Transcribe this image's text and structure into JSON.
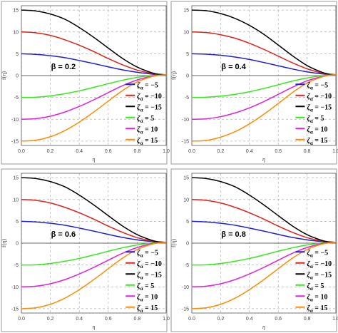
{
  "colors": {
    "panel_border": "#9a9a9a",
    "grid": "#b0b0b0",
    "axis": "#555555",
    "tick_text": "#444444",
    "series": [
      "#1f1fd6",
      "#e0201b",
      "#000000",
      "#34e81a",
      "#e11fe0",
      "#ff8c00"
    ]
  },
  "chart_data": [
    {
      "type": "line",
      "annotation": "β = 0.2",
      "xlabel": "η",
      "ylabel": "f(η)",
      "xlim": [
        0,
        1
      ],
      "ylim": [
        -16,
        16
      ],
      "xticks": [
        "0.0",
        "0.2",
        "0.4",
        "0.6",
        "0.8",
        "1.0"
      ],
      "yticks": [
        "-15",
        "-10",
        "-5",
        "0",
        "5",
        "10",
        "15"
      ],
      "grid": true,
      "legend": "right",
      "series": [
        {
          "name": "ζα = −5",
          "x": [
            0,
            0.1,
            0.2,
            0.3,
            0.4,
            0.5,
            0.6,
            0.7,
            0.8,
            0.9,
            0.95,
            1.0
          ],
          "y": [
            5,
            4.85,
            4.55,
            4.1,
            3.45,
            2.75,
            2.0,
            1.3,
            0.75,
            0.35,
            0.2,
            0.2
          ]
        },
        {
          "name": "ζα = −10",
          "x": [
            0,
            0.1,
            0.2,
            0.3,
            0.4,
            0.5,
            0.6,
            0.7,
            0.8,
            0.9,
            0.95,
            1.0
          ],
          "y": [
            10,
            9.8,
            9.2,
            8.2,
            6.95,
            5.5,
            3.9,
            2.45,
            1.25,
            0.5,
            0.25,
            0.2
          ]
        },
        {
          "name": "ζα = −15",
          "x": [
            0,
            0.1,
            0.2,
            0.3,
            0.4,
            0.5,
            0.6,
            0.7,
            0.8,
            0.9,
            0.95,
            1.0
          ],
          "y": [
            15,
            14.8,
            14.1,
            12.9,
            11.0,
            8.75,
            6.3,
            3.9,
            1.95,
            0.65,
            0.3,
            0.2
          ]
        },
        {
          "name": "ζα = 5",
          "x": [
            0,
            0.1,
            0.2,
            0.3,
            0.4,
            0.5,
            0.6,
            0.7,
            0.8,
            0.9,
            0.95,
            1.0
          ],
          "y": [
            -5,
            -4.95,
            -4.65,
            -4.15,
            -3.5,
            -2.7,
            -1.85,
            -1.05,
            -0.4,
            0.0,
            0.1,
            0.2
          ]
        },
        {
          "name": "ζα = 10",
          "x": [
            0,
            0.1,
            0.2,
            0.3,
            0.4,
            0.5,
            0.6,
            0.7,
            0.8,
            0.9,
            0.95,
            1.0
          ],
          "y": [
            -10,
            -9.85,
            -9.3,
            -8.35,
            -7.05,
            -5.55,
            -3.9,
            -2.3,
            -1.0,
            -0.15,
            0.05,
            0.2
          ]
        },
        {
          "name": "ζα = 15",
          "x": [
            0,
            0.1,
            0.2,
            0.3,
            0.4,
            0.5,
            0.6,
            0.7,
            0.8,
            0.9,
            0.95,
            1.0
          ],
          "y": [
            -15,
            -14.8,
            -14.0,
            -12.6,
            -10.65,
            -8.35,
            -5.85,
            -3.4,
            -1.45,
            -0.25,
            0.05,
            0.2
          ]
        }
      ]
    },
    {
      "type": "line",
      "annotation": "β = 0.4",
      "xlabel": "η",
      "ylabel": "f(η)",
      "xlim": [
        0,
        1
      ],
      "ylim": [
        -16,
        16
      ],
      "xticks": [
        "0.0",
        "0.2",
        "0.4",
        "0.6",
        "0.8",
        "1.0"
      ],
      "yticks": [
        "-15",
        "-10",
        "-5",
        "0",
        "5",
        "10",
        "15"
      ],
      "grid": true,
      "legend": "right",
      "series": [
        {
          "name": "ζα = −5",
          "x": [
            0,
            0.1,
            0.2,
            0.3,
            0.4,
            0.5,
            0.6,
            0.7,
            0.8,
            0.9,
            0.95,
            1.0
          ],
          "y": [
            5,
            4.9,
            4.65,
            4.25,
            3.7,
            3.0,
            2.25,
            1.5,
            0.85,
            0.4,
            0.25,
            0.2
          ]
        },
        {
          "name": "ζα = −10",
          "x": [
            0,
            0.1,
            0.2,
            0.3,
            0.4,
            0.5,
            0.6,
            0.7,
            0.8,
            0.9,
            0.95,
            1.0
          ],
          "y": [
            10,
            9.85,
            9.35,
            8.55,
            7.4,
            6.0,
            4.45,
            2.9,
            1.55,
            0.6,
            0.3,
            0.2
          ]
        },
        {
          "name": "ζα = −15",
          "x": [
            0,
            0.1,
            0.2,
            0.3,
            0.4,
            0.5,
            0.6,
            0.7,
            0.8,
            0.9,
            0.95,
            1.0
          ],
          "y": [
            15,
            14.85,
            14.2,
            13.1,
            11.5,
            9.45,
            7.0,
            4.5,
            2.3,
            0.8,
            0.35,
            0.2
          ]
        },
        {
          "name": "ζα = 5",
          "x": [
            0,
            0.1,
            0.2,
            0.3,
            0.4,
            0.5,
            0.6,
            0.7,
            0.8,
            0.9,
            0.95,
            1.0
          ],
          "y": [
            -5,
            -4.95,
            -4.7,
            -4.3,
            -3.7,
            -2.95,
            -2.1,
            -1.25,
            -0.55,
            -0.05,
            0.1,
            0.2
          ]
        },
        {
          "name": "ζα = 10",
          "x": [
            0,
            0.1,
            0.2,
            0.3,
            0.4,
            0.5,
            0.6,
            0.7,
            0.8,
            0.9,
            0.95,
            1.0
          ],
          "y": [
            -10,
            -9.9,
            -9.4,
            -8.55,
            -7.4,
            -5.95,
            -4.3,
            -2.65,
            -1.2,
            -0.25,
            0.05,
            0.2
          ]
        },
        {
          "name": "ζα = 15",
          "x": [
            0,
            0.1,
            0.2,
            0.3,
            0.4,
            0.5,
            0.6,
            0.7,
            0.8,
            0.9,
            0.95,
            1.0
          ],
          "y": [
            -15,
            -14.85,
            -14.1,
            -12.85,
            -11.05,
            -8.85,
            -6.4,
            -3.85,
            -1.7,
            -0.35,
            0.05,
            0.2
          ]
        }
      ]
    },
    {
      "type": "line",
      "annotation": "β = 0.6",
      "xlabel": "η",
      "ylabel": "f(η)",
      "xlim": [
        0,
        1
      ],
      "ylim": [
        -16,
        16
      ],
      "xticks": [
        "0.0",
        "0.2",
        "0.4",
        "0.6",
        "0.8",
        "1.0"
      ],
      "yticks": [
        "-15",
        "-10",
        "-5",
        "0",
        "5",
        "10",
        "15"
      ],
      "grid": true,
      "legend": "right",
      "series": [
        {
          "name": "ζα = −5",
          "x": [
            0,
            0.1,
            0.2,
            0.3,
            0.4,
            0.5,
            0.6,
            0.7,
            0.8,
            0.9,
            0.95,
            1.0
          ],
          "y": [
            5,
            4.85,
            4.55,
            4.1,
            3.45,
            2.75,
            2.0,
            1.3,
            0.75,
            0.35,
            0.2,
            0.2
          ]
        },
        {
          "name": "ζα = −10",
          "x": [
            0,
            0.1,
            0.2,
            0.3,
            0.4,
            0.5,
            0.6,
            0.7,
            0.8,
            0.9,
            0.95,
            1.0
          ],
          "y": [
            10,
            9.8,
            9.2,
            8.2,
            6.95,
            5.5,
            3.9,
            2.45,
            1.25,
            0.5,
            0.25,
            0.2
          ]
        },
        {
          "name": "ζα = −15",
          "x": [
            0,
            0.1,
            0.2,
            0.3,
            0.4,
            0.5,
            0.6,
            0.7,
            0.8,
            0.9,
            0.95,
            1.0
          ],
          "y": [
            15,
            14.8,
            14.1,
            12.9,
            11.0,
            8.75,
            6.3,
            3.9,
            1.95,
            0.65,
            0.3,
            0.2
          ]
        },
        {
          "name": "ζα = 5",
          "x": [
            0,
            0.1,
            0.2,
            0.3,
            0.4,
            0.5,
            0.6,
            0.7,
            0.8,
            0.9,
            0.95,
            1.0
          ],
          "y": [
            -5,
            -4.95,
            -4.65,
            -4.15,
            -3.5,
            -2.7,
            -1.85,
            -1.05,
            -0.4,
            0.0,
            0.1,
            0.2
          ]
        },
        {
          "name": "ζα = 10",
          "x": [
            0,
            0.1,
            0.2,
            0.3,
            0.4,
            0.5,
            0.6,
            0.7,
            0.8,
            0.9,
            0.95,
            1.0
          ],
          "y": [
            -10,
            -9.85,
            -9.3,
            -8.35,
            -7.05,
            -5.55,
            -3.9,
            -2.3,
            -1.0,
            -0.15,
            0.05,
            0.2
          ]
        },
        {
          "name": "ζα = 15",
          "x": [
            0,
            0.1,
            0.2,
            0.3,
            0.4,
            0.5,
            0.6,
            0.7,
            0.8,
            0.9,
            0.95,
            1.0
          ],
          "y": [
            -15,
            -14.8,
            -14.0,
            -12.6,
            -10.65,
            -8.35,
            -5.85,
            -3.4,
            -1.45,
            -0.25,
            0.05,
            0.2
          ]
        }
      ]
    },
    {
      "type": "line",
      "annotation": "β = 0.8",
      "xlabel": "η",
      "ylabel": "f(η)",
      "xlim": [
        0,
        1
      ],
      "ylim": [
        -16,
        16
      ],
      "xticks": [
        "0.0",
        "0.2",
        "0.4",
        "0.6",
        "0.8",
        "1.0"
      ],
      "yticks": [
        "-15",
        "-10",
        "-5",
        "0",
        "5",
        "10",
        "15"
      ],
      "grid": true,
      "legend": "right",
      "series": [
        {
          "name": "ζα = −5",
          "x": [
            0,
            0.1,
            0.2,
            0.3,
            0.4,
            0.5,
            0.6,
            0.7,
            0.8,
            0.9,
            0.95,
            1.0
          ],
          "y": [
            5,
            4.85,
            4.55,
            4.1,
            3.45,
            2.75,
            2.0,
            1.3,
            0.75,
            0.35,
            0.2,
            0.2
          ]
        },
        {
          "name": "ζα = −10",
          "x": [
            0,
            0.1,
            0.2,
            0.3,
            0.4,
            0.5,
            0.6,
            0.7,
            0.8,
            0.9,
            0.95,
            1.0
          ],
          "y": [
            10,
            9.8,
            9.2,
            8.2,
            6.95,
            5.5,
            3.9,
            2.45,
            1.25,
            0.5,
            0.25,
            0.2
          ]
        },
        {
          "name": "ζα = −15",
          "x": [
            0,
            0.1,
            0.2,
            0.3,
            0.4,
            0.5,
            0.6,
            0.7,
            0.8,
            0.9,
            0.95,
            1.0
          ],
          "y": [
            15,
            14.8,
            14.1,
            12.9,
            11.0,
            8.75,
            6.3,
            3.9,
            1.95,
            0.65,
            0.3,
            0.2
          ]
        },
        {
          "name": "ζα = 5",
          "x": [
            0,
            0.1,
            0.2,
            0.3,
            0.4,
            0.5,
            0.6,
            0.7,
            0.8,
            0.9,
            0.95,
            1.0
          ],
          "y": [
            -5,
            -4.95,
            -4.65,
            -4.15,
            -3.5,
            -2.7,
            -1.85,
            -1.05,
            -0.4,
            0.0,
            0.1,
            0.2
          ]
        },
        {
          "name": "ζα = 10",
          "x": [
            0,
            0.1,
            0.2,
            0.3,
            0.4,
            0.5,
            0.6,
            0.7,
            0.8,
            0.9,
            0.95,
            1.0
          ],
          "y": [
            -10,
            -9.85,
            -9.3,
            -8.35,
            -7.05,
            -5.55,
            -3.9,
            -2.3,
            -1.0,
            -0.15,
            0.05,
            0.2
          ]
        },
        {
          "name": "ζα = 15",
          "x": [
            0,
            0.1,
            0.2,
            0.3,
            0.4,
            0.5,
            0.6,
            0.7,
            0.8,
            0.9,
            0.95,
            1.0
          ],
          "y": [
            -15,
            -14.8,
            -14.0,
            -12.6,
            -10.65,
            -8.35,
            -5.85,
            -3.4,
            -1.45,
            -0.25,
            0.05,
            0.2
          ]
        }
      ]
    }
  ]
}
